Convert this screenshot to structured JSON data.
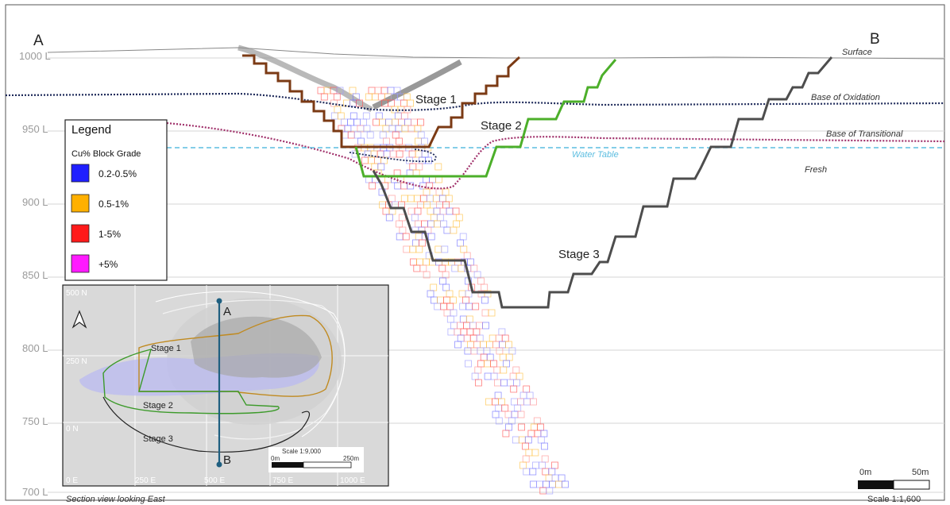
{
  "section": {
    "point_a": "A",
    "point_b": "B",
    "levels": [
      "1000 L",
      "950 L",
      "900 L",
      "850 L",
      "800 L",
      "750 L",
      "700 L"
    ],
    "surfaces": {
      "surface": "Surface",
      "base_oxidation": "Base of Oxidation",
      "base_transitional": "Base of Transitional",
      "water_table": "Water Table",
      "fresh": "Fresh"
    },
    "stages": [
      "Stage 1",
      "Stage 2",
      "Stage 3"
    ],
    "footer_left": "Section view looking East",
    "scale_label": "Scale 1:1,600",
    "scale_start": "0m",
    "scale_end": "50m"
  },
  "legend": {
    "title": "Legend",
    "subtitle": "Cu% Block Grade",
    "items": [
      {
        "label": "0.2-0.5%",
        "color": "#1f1fff"
      },
      {
        "label": "0.5-1%",
        "color": "#ffb000"
      },
      {
        "label": "1-5%",
        "color": "#ff1a1a"
      },
      {
        "label": "+5%",
        "color": "#ff1aff"
      }
    ]
  },
  "inset": {
    "north_labels": [
      "500 N",
      "250 N",
      "0 N"
    ],
    "east_labels": [
      "0 E",
      "250 E",
      "500 E",
      "750 E",
      "1000 E"
    ],
    "stages": [
      "Stage 1",
      "Stage 2",
      "Stage 3"
    ],
    "point_a": "A",
    "point_b": "B",
    "scale_label": "Scale 1:9,000",
    "scale_start": "0m",
    "scale_end": "250m"
  },
  "colors": {
    "stage1": "#7b3a14",
    "stage2": "#4caf2a",
    "stage3": "#4d4d4d",
    "water": "#5bbde0",
    "oxidation": "#1e2a5a",
    "transitional": "#a0306a"
  }
}
